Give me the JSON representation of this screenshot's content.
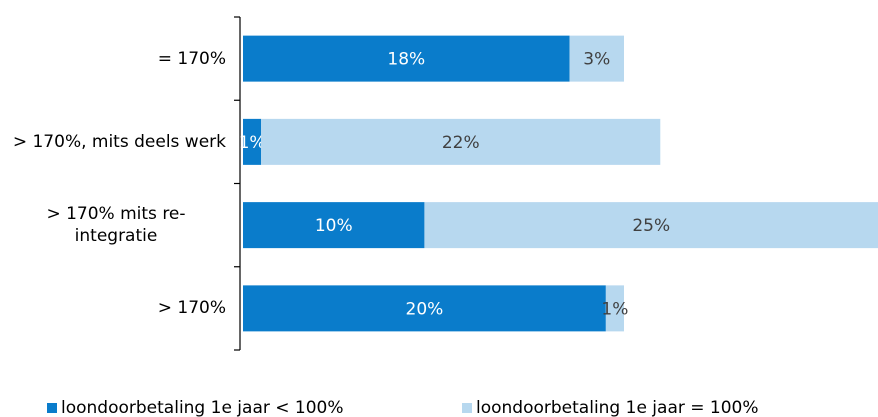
{
  "chart_data": {
    "type": "bar",
    "orientation": "horizontal",
    "stacked": true,
    "categories": [
      "= 170%",
      "> 170%, mits deels werk",
      "> 170% mits re-integratie",
      "> 170%"
    ],
    "series": [
      {
        "name": "loondoorbetaling 1e jaar < 100%",
        "color": "#0a7ccb",
        "values": [
          18,
          1,
          10,
          20
        ],
        "value_labels": [
          "18%",
          "1%",
          "10%",
          "20%"
        ]
      },
      {
        "name": "loondoorbetaling 1e jaar = 100%",
        "color": "#b7d8ef",
        "values": [
          3,
          22,
          25,
          1
        ],
        "value_labels": [
          "3%",
          "22%",
          "25%",
          "1%"
        ]
      }
    ],
    "xlim": [
      0,
      35
    ],
    "legend": "bottom"
  }
}
